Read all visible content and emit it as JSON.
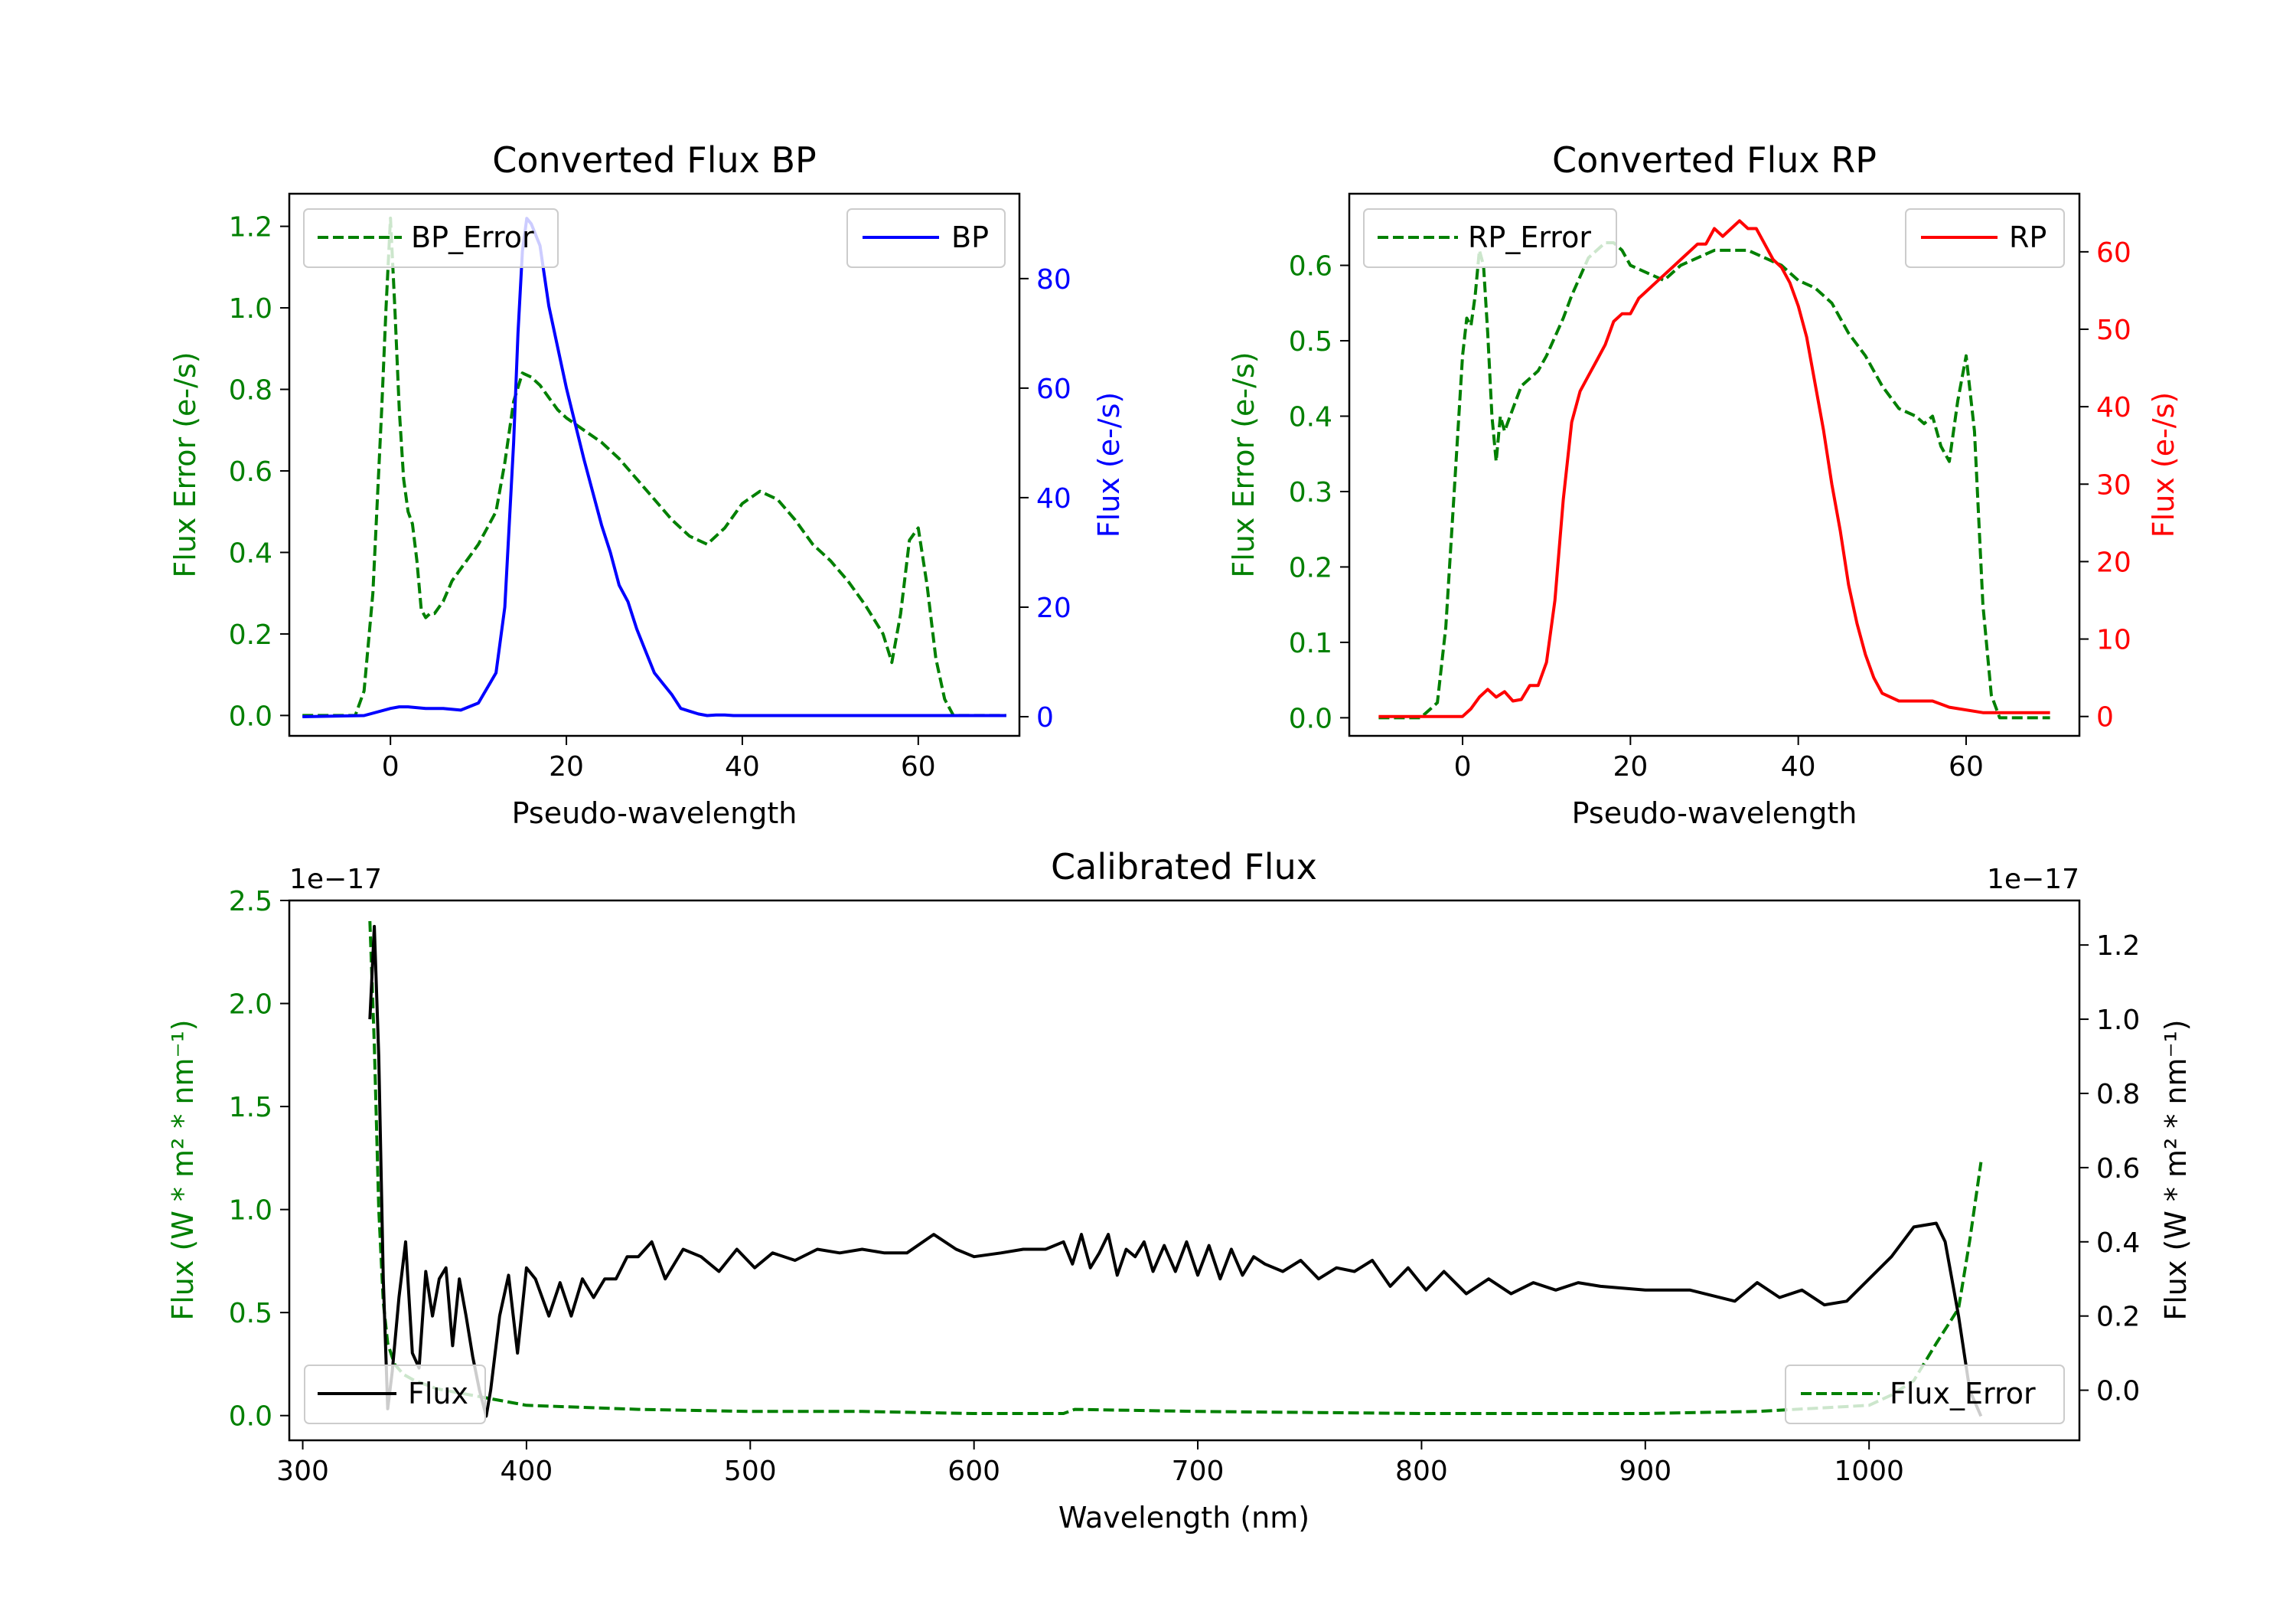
{
  "chart_data": [
    {
      "id": "bp",
      "type": "line",
      "title": "Converted Flux BP",
      "xlabel": "Pseudo-wavelength",
      "ylabel_left": "Flux Error (e-/s)",
      "ylabel_right": "Flux (e-/s)",
      "xlim": [
        -11.5,
        71.5
      ],
      "ylim_left": [
        -0.05,
        1.28
      ],
      "ylim_right": [
        -3.5,
        95.5
      ],
      "xticks": [
        0,
        20,
        40,
        60
      ],
      "yticks_left": [
        0.0,
        0.2,
        0.4,
        0.6,
        0.8,
        1.0,
        1.2
      ],
      "yticks_right": [
        0,
        20,
        40,
        60,
        80
      ],
      "left_color": "#008000",
      "right_color": "#0000ff",
      "series": [
        {
          "name": "BP_Error",
          "axis": "left",
          "color": "#008000",
          "style": "dashed",
          "x": [
            -10,
            -4,
            -3,
            -2,
            -1,
            -0.5,
            0,
            0.5,
            1,
            1.5,
            2,
            2.5,
            3,
            3.5,
            4,
            4.5,
            5,
            6,
            7,
            8,
            9,
            10,
            12,
            13,
            14,
            15,
            16,
            17,
            18,
            19,
            20,
            22,
            24,
            26,
            28,
            30,
            32,
            34,
            36,
            38,
            40,
            42,
            44,
            46,
            48,
            50,
            52,
            54,
            56,
            57,
            58,
            59,
            60,
            61,
            62,
            63,
            64,
            65,
            66,
            70
          ],
          "values": [
            0.0,
            0.0,
            0.06,
            0.3,
            0.75,
            1.0,
            1.22,
            1.0,
            0.75,
            0.58,
            0.5,
            0.47,
            0.38,
            0.26,
            0.24,
            0.25,
            0.25,
            0.28,
            0.33,
            0.36,
            0.39,
            0.42,
            0.5,
            0.62,
            0.77,
            0.84,
            0.83,
            0.81,
            0.78,
            0.75,
            0.73,
            0.7,
            0.67,
            0.63,
            0.58,
            0.53,
            0.48,
            0.44,
            0.42,
            0.46,
            0.52,
            0.55,
            0.53,
            0.48,
            0.42,
            0.38,
            0.33,
            0.27,
            0.2,
            0.13,
            0.25,
            0.43,
            0.46,
            0.32,
            0.14,
            0.04,
            0.0,
            0.0,
            0.0,
            0.0
          ]
        },
        {
          "name": "BP",
          "axis": "right",
          "color": "#0000ff",
          "style": "solid",
          "x": [
            -10,
            -3,
            0,
            1,
            2,
            4,
            6,
            8,
            10,
            12,
            13,
            14,
            14.5,
            15,
            15.5,
            16,
            17,
            18,
            20,
            22,
            24,
            25,
            26,
            27,
            28,
            29,
            30,
            31,
            32,
            33,
            34,
            35,
            36,
            37,
            38,
            39,
            40,
            41,
            42,
            43,
            44,
            45,
            46,
            47,
            48,
            49,
            50,
            52,
            55,
            58,
            62,
            66,
            70
          ],
          "values": [
            0,
            0.2,
            1.5,
            1.8,
            1.8,
            1.5,
            1.5,
            1.2,
            2.5,
            8.0,
            20,
            50,
            70,
            85,
            91,
            90,
            86,
            75,
            60,
            47,
            35,
            30,
            24,
            21,
            16,
            12,
            8,
            6,
            4,
            1.5,
            1,
            0.5,
            0.2,
            0.3,
            0.3,
            0.2,
            0.2,
            0.2,
            0.2,
            0.2,
            0.2,
            0.2,
            0.2,
            0.2,
            0.2,
            0.2,
            0.2,
            0.2,
            0.2,
            0.2,
            0.2,
            0.2,
            0.2
          ]
        }
      ],
      "legend": [
        {
          "label": "BP_Error",
          "position": "upper-left"
        },
        {
          "label": "BP",
          "position": "upper-right"
        }
      ]
    },
    {
      "id": "rp",
      "type": "line",
      "title": "Converted Flux RP",
      "xlabel": "Pseudo-wavelength",
      "ylabel_left": "Flux Error (e-/s)",
      "ylabel_right": "Flux (e-/s)",
      "xlim": [
        -13.5,
        73.5
      ],
      "ylim_left": [
        -0.024,
        0.695
      ],
      "ylim_right": [
        -2.5,
        67.5
      ],
      "xticks": [
        0,
        20,
        40,
        60
      ],
      "yticks_left": [
        0.0,
        0.1,
        0.2,
        0.3,
        0.4,
        0.5,
        0.6
      ],
      "yticks_right": [
        0,
        10,
        20,
        30,
        40,
        50,
        60
      ],
      "left_color": "#008000",
      "right_color": "#ff0000",
      "series": [
        {
          "name": "RP_Error",
          "axis": "left",
          "color": "#008000",
          "style": "dashed",
          "x": [
            -10,
            -5,
            -3,
            -2,
            -1,
            0,
            0.5,
            1,
            1.5,
            2,
            2.5,
            3,
            3.5,
            4,
            4.5,
            5,
            6,
            7,
            8,
            9,
            10,
            12,
            13,
            15,
            17,
            18,
            19,
            20,
            22,
            24,
            26,
            28,
            30,
            32,
            34,
            36,
            38,
            40,
            42,
            44,
            46,
            48,
            50,
            52,
            54,
            55,
            56,
            57,
            58,
            59,
            60,
            61,
            62,
            63,
            64,
            66,
            70
          ],
          "values": [
            0.0,
            0.0,
            0.02,
            0.12,
            0.3,
            0.48,
            0.53,
            0.52,
            0.56,
            0.62,
            0.6,
            0.51,
            0.4,
            0.34,
            0.4,
            0.38,
            0.41,
            0.44,
            0.45,
            0.46,
            0.48,
            0.53,
            0.56,
            0.61,
            0.63,
            0.63,
            0.62,
            0.6,
            0.59,
            0.58,
            0.6,
            0.61,
            0.62,
            0.62,
            0.62,
            0.61,
            0.6,
            0.58,
            0.57,
            0.55,
            0.51,
            0.48,
            0.44,
            0.41,
            0.4,
            0.39,
            0.4,
            0.36,
            0.34,
            0.42,
            0.48,
            0.38,
            0.15,
            0.03,
            0.0,
            0.0,
            0.0
          ]
        },
        {
          "name": "RP",
          "axis": "right",
          "color": "#ff0000",
          "style": "solid",
          "x": [
            -10,
            -2,
            0,
            1,
            2,
            3,
            4,
            5,
            6,
            7,
            8,
            9,
            10,
            11,
            12,
            13,
            14,
            15,
            16,
            17,
            18,
            19,
            20,
            21,
            22,
            23,
            24,
            25,
            26,
            27,
            28,
            29,
            30,
            31,
            32,
            33,
            34,
            35,
            36,
            37,
            38,
            39,
            40,
            41,
            42,
            43,
            44,
            45,
            46,
            47,
            48,
            49,
            50,
            52,
            54,
            56,
            58,
            62,
            66,
            70
          ],
          "values": [
            0,
            0,
            0,
            1,
            2.5,
            3.5,
            2.5,
            3.2,
            2.0,
            2.2,
            4.0,
            4.0,
            7,
            15,
            28,
            38,
            42,
            44,
            46,
            48,
            51,
            52,
            52,
            54,
            55,
            56,
            57,
            58,
            59,
            60,
            61,
            61,
            63,
            62,
            63,
            64,
            63,
            63,
            61,
            59,
            58,
            56,
            53,
            49,
            43,
            37,
            30,
            24,
            17,
            12,
            8,
            5,
            3,
            2,
            2,
            2,
            1.2,
            0.5,
            0.5,
            0.5
          ]
        }
      ],
      "legend": [
        {
          "label": "RP_Error",
          "position": "upper-left"
        },
        {
          "label": "RP",
          "position": "upper-right"
        }
      ]
    },
    {
      "id": "cal",
      "type": "line",
      "title": "Calibrated Flux",
      "xlabel": "Wavelength (nm)",
      "ylabel_left": "Flux (W * m² * nm⁻¹)",
      "ylabel_right": "Flux (W * m² * nm⁻¹)",
      "offset_left": "1e−17",
      "offset_right": "1e−17",
      "xlim": [
        294,
        1094
      ],
      "ylim_left": [
        -0.12,
        2.5
      ],
      "ylim_right": [
        -0.135,
        1.32
      ],
      "xticks": [
        300,
        400,
        500,
        600,
        700,
        800,
        900,
        1000
      ],
      "yticks_left": [
        0.0,
        0.5,
        1.0,
        1.5,
        2.0,
        2.5
      ],
      "yticks_right": [
        0.0,
        0.2,
        0.4,
        0.6,
        0.8,
        1.0,
        1.2
      ],
      "left_color": "#008000",
      "right_color": "#000000",
      "series": [
        {
          "name": "Flux_Error",
          "axis": "left",
          "color": "#008000",
          "style": "dashed",
          "x": [
            330,
            332,
            334,
            336,
            338,
            341,
            345,
            350,
            360,
            380,
            400,
            450,
            500,
            550,
            600,
            640,
            645,
            700,
            800,
            900,
            950,
            1000,
            1010,
            1020,
            1030,
            1040,
            1045,
            1050
          ],
          "values": [
            2.4,
            1.8,
            1.0,
            0.55,
            0.35,
            0.25,
            0.2,
            0.17,
            0.13,
            0.09,
            0.05,
            0.03,
            0.02,
            0.02,
            0.01,
            0.01,
            0.03,
            0.02,
            0.01,
            0.01,
            0.02,
            0.05,
            0.1,
            0.17,
            0.35,
            0.52,
            0.85,
            1.23
          ]
        },
        {
          "name": "Flux",
          "axis": "right",
          "color": "#000000",
          "style": "solid",
          "x": [
            330,
            332,
            334,
            336,
            338,
            340,
            343,
            346,
            349,
            352,
            355,
            358,
            361,
            364,
            367,
            370,
            373,
            376,
            379,
            382,
            384,
            388,
            392,
            396,
            400,
            404,
            410,
            415,
            420,
            425,
            430,
            435,
            440,
            445,
            450,
            456,
            462,
            470,
            478,
            486,
            494,
            502,
            510,
            520,
            530,
            540,
            550,
            560,
            570,
            582,
            592,
            600,
            612,
            622,
            632,
            640,
            644,
            648,
            652,
            656,
            660,
            664,
            668,
            672,
            676,
            680,
            685,
            690,
            695,
            700,
            705,
            710,
            715,
            720,
            725,
            730,
            738,
            746,
            754,
            762,
            770,
            778,
            786,
            794,
            802,
            810,
            820,
            830,
            840,
            850,
            860,
            870,
            880,
            900,
            920,
            940,
            950,
            960,
            970,
            980,
            990,
            1000,
            1010,
            1020,
            1030,
            1034,
            1040,
            1045,
            1050
          ],
          "values": [
            1.0,
            1.25,
            0.9,
            0.3,
            -0.05,
            0.05,
            0.25,
            0.4,
            0.1,
            0.06,
            0.32,
            0.2,
            0.3,
            0.33,
            0.12,
            0.3,
            0.2,
            0.09,
            0.0,
            -0.07,
            0.0,
            0.2,
            0.31,
            0.1,
            0.33,
            0.3,
            0.2,
            0.29,
            0.2,
            0.3,
            0.25,
            0.3,
            0.3,
            0.36,
            0.36,
            0.4,
            0.3,
            0.38,
            0.36,
            0.32,
            0.38,
            0.33,
            0.37,
            0.35,
            0.38,
            0.37,
            0.38,
            0.37,
            0.37,
            0.42,
            0.38,
            0.36,
            0.37,
            0.38,
            0.38,
            0.4,
            0.34,
            0.42,
            0.33,
            0.37,
            0.42,
            0.31,
            0.38,
            0.36,
            0.4,
            0.32,
            0.39,
            0.32,
            0.4,
            0.31,
            0.39,
            0.3,
            0.38,
            0.31,
            0.36,
            0.34,
            0.32,
            0.35,
            0.3,
            0.33,
            0.32,
            0.35,
            0.28,
            0.33,
            0.27,
            0.32,
            0.26,
            0.3,
            0.26,
            0.29,
            0.27,
            0.29,
            0.28,
            0.27,
            0.27,
            0.24,
            0.29,
            0.25,
            0.27,
            0.23,
            0.24,
            0.3,
            0.36,
            0.44,
            0.45,
            0.4,
            0.2,
            0.0,
            -0.07
          ]
        }
      ],
      "legend": [
        {
          "label": "Flux",
          "position": "lower-left"
        },
        {
          "label": "Flux_Error",
          "position": "lower-right"
        }
      ]
    }
  ]
}
